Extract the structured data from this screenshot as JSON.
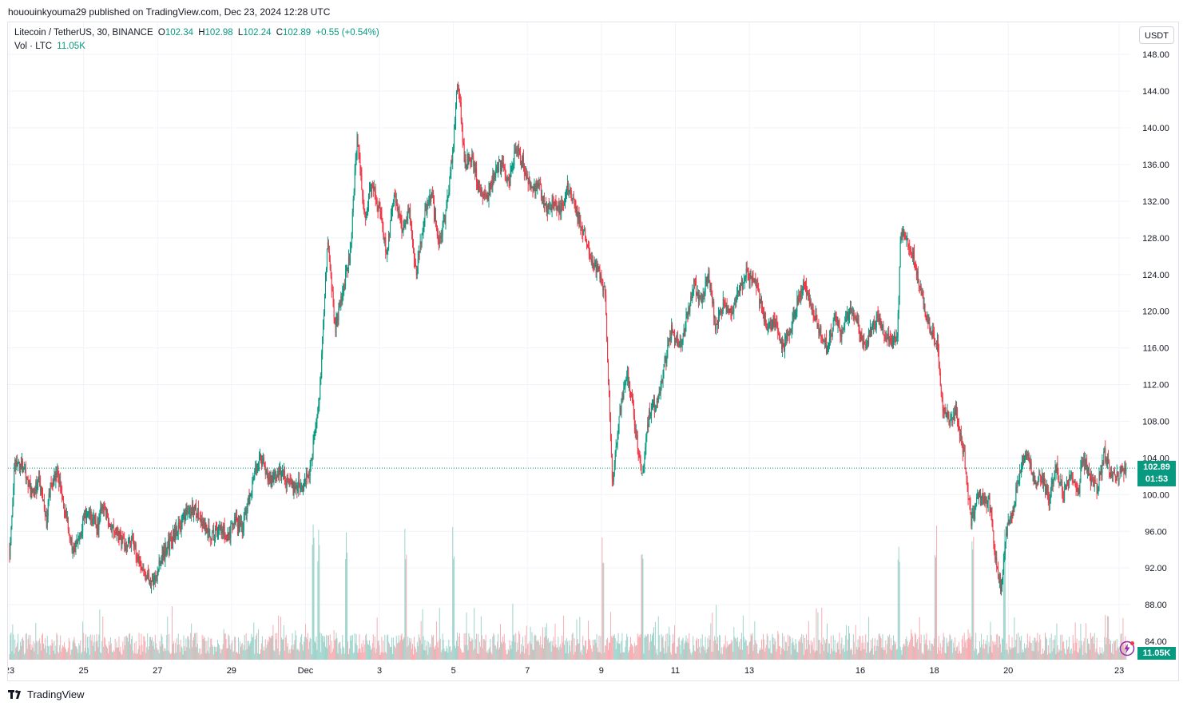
{
  "header": {
    "published_line": "hououinkyouma29 published on TradingView.com, Dec 23, 2024 12:28 UTC"
  },
  "legend": {
    "symbol": "Litecoin / TetherUS, 30, BINANCE",
    "o_label": "O",
    "o_value": "102.34",
    "h_label": "H",
    "h_value": "102.98",
    "l_label": "L",
    "l_value": "102.24",
    "c_label": "C",
    "c_value": "102.89",
    "change": "+0.55 (+0.54%)",
    "vol_label": "Vol · LTC",
    "vol_value": "11.05K"
  },
  "currency_button": "USDT",
  "last_price_tag": {
    "price": "102.89",
    "countdown": "01:53"
  },
  "volume_tag": "11.05K",
  "branding": {
    "name": "TradingView"
  },
  "colors": {
    "up": "#089981",
    "down": "#f23645",
    "volume_up": "#9fd4cc",
    "volume_down": "#f7aeb3",
    "grid": "#f0f3fa",
    "axis_text": "#131722"
  },
  "chart_data": {
    "type": "candlestick",
    "title": "Litecoin / TetherUS, 30, BINANCE",
    "interval": "30",
    "ylabel": "USDT",
    "ylim": [
      82.0,
      151.5
    ],
    "y_ticks": [
      84,
      88,
      92,
      96,
      100,
      104,
      108,
      112,
      116,
      120,
      124,
      128,
      132,
      136,
      140,
      144,
      148
    ],
    "y_tick_labels": [
      "84.00",
      "88.00",
      "92.00",
      "96.00",
      "100.00",
      "104.00",
      "108.00",
      "112.00",
      "116.00",
      "120.00",
      "124.00",
      "128.00",
      "132.00",
      "136.00",
      "140.00",
      "144.00",
      "148.00"
    ],
    "x_range_days": [
      0,
      30.3
    ],
    "x_ticks": [
      {
        "day": 0.0,
        "label": "23"
      },
      {
        "day": 2.0,
        "label": "25"
      },
      {
        "day": 4.0,
        "label": "27"
      },
      {
        "day": 6.0,
        "label": "29"
      },
      {
        "day": 8.0,
        "label": "Dec"
      },
      {
        "day": 10.0,
        "label": "3"
      },
      {
        "day": 12.0,
        "label": "5"
      },
      {
        "day": 14.0,
        "label": "7"
      },
      {
        "day": 16.0,
        "label": "9"
      },
      {
        "day": 18.0,
        "label": "11"
      },
      {
        "day": 20.0,
        "label": "13"
      },
      {
        "day": 23.0,
        "label": "16"
      },
      {
        "day": 25.0,
        "label": "18"
      },
      {
        "day": 27.0,
        "label": "20"
      },
      {
        "day": 30.0,
        "label": "23"
      }
    ],
    "price_path": [
      [
        0.0,
        94.0
      ],
      [
        0.15,
        103.5
      ],
      [
        0.4,
        103.0
      ],
      [
        0.6,
        100.0
      ],
      [
        0.8,
        101.5
      ],
      [
        1.0,
        97.0
      ],
      [
        1.1,
        101.0
      ],
      [
        1.3,
        102.5
      ],
      [
        1.45,
        99.0
      ],
      [
        1.6,
        96.0
      ],
      [
        1.75,
        93.5
      ],
      [
        1.9,
        96.0
      ],
      [
        2.1,
        98.0
      ],
      [
        2.4,
        96.5
      ],
      [
        2.5,
        99.0
      ],
      [
        2.7,
        97.0
      ],
      [
        2.9,
        96.0
      ],
      [
        3.1,
        94.5
      ],
      [
        3.3,
        95.0
      ],
      [
        3.5,
        93.0
      ],
      [
        3.7,
        91.0
      ],
      [
        3.9,
        90.5
      ],
      [
        4.1,
        93.0
      ],
      [
        4.3,
        94.5
      ],
      [
        4.5,
        96.0
      ],
      [
        4.8,
        98.0
      ],
      [
        5.0,
        98.5
      ],
      [
        5.2,
        97.0
      ],
      [
        5.5,
        95.5
      ],
      [
        5.7,
        96.5
      ],
      [
        5.9,
        95.5
      ],
      [
        6.1,
        97.0
      ],
      [
        6.3,
        96.5
      ],
      [
        6.6,
        102.0
      ],
      [
        6.8,
        104.0
      ],
      [
        7.0,
        101.5
      ],
      [
        7.3,
        102.5
      ],
      [
        7.6,
        101.0
      ],
      [
        7.9,
        101.0
      ],
      [
        8.1,
        102.5
      ],
      [
        8.25,
        106.5
      ],
      [
        8.4,
        112.0
      ],
      [
        8.6,
        128.0
      ],
      [
        8.8,
        118.0
      ],
      [
        9.0,
        122.0
      ],
      [
        9.2,
        126.0
      ],
      [
        9.4,
        139.0
      ],
      [
        9.6,
        130.0
      ],
      [
        9.8,
        134.0
      ],
      [
        10.0,
        131.0
      ],
      [
        10.2,
        126.0
      ],
      [
        10.4,
        133.0
      ],
      [
        10.6,
        129.0
      ],
      [
        10.8,
        131.0
      ],
      [
        11.0,
        124.0
      ],
      [
        11.2,
        130.0
      ],
      [
        11.4,
        133.0
      ],
      [
        11.6,
        127.0
      ],
      [
        11.8,
        131.0
      ],
      [
        12.0,
        138.0
      ],
      [
        12.1,
        145.0
      ],
      [
        12.2,
        142.0
      ],
      [
        12.3,
        136.0
      ],
      [
        12.5,
        137.0
      ],
      [
        12.7,
        133.0
      ],
      [
        12.9,
        132.0
      ],
      [
        13.1,
        135.0
      ],
      [
        13.3,
        136.0
      ],
      [
        13.5,
        134.0
      ],
      [
        13.7,
        138.0
      ],
      [
        13.9,
        136.0
      ],
      [
        14.1,
        133.0
      ],
      [
        14.3,
        134.0
      ],
      [
        14.5,
        131.0
      ],
      [
        14.7,
        132.0
      ],
      [
        14.9,
        131.0
      ],
      [
        15.1,
        133.5
      ],
      [
        15.3,
        131.0
      ],
      [
        15.5,
        129.0
      ],
      [
        15.7,
        126.0
      ],
      [
        15.9,
        124.5
      ],
      [
        16.1,
        122.0
      ],
      [
        16.3,
        101.0
      ],
      [
        16.5,
        109.0
      ],
      [
        16.7,
        113.5
      ],
      [
        16.9,
        108.0
      ],
      [
        17.1,
        102.0
      ],
      [
        17.3,
        109.0
      ],
      [
        17.5,
        110.0
      ],
      [
        17.7,
        114.0
      ],
      [
        17.9,
        118.0
      ],
      [
        18.1,
        116.0
      ],
      [
        18.3,
        119.0
      ],
      [
        18.5,
        123.0
      ],
      [
        18.7,
        121.0
      ],
      [
        18.9,
        124.0
      ],
      [
        19.1,
        118.0
      ],
      [
        19.3,
        121.0
      ],
      [
        19.5,
        120.0
      ],
      [
        19.7,
        122.0
      ],
      [
        19.9,
        124.0
      ],
      [
        20.1,
        123.5
      ],
      [
        20.3,
        121.0
      ],
      [
        20.5,
        118.0
      ],
      [
        20.7,
        119.0
      ],
      [
        20.9,
        116.0
      ],
      [
        21.1,
        118.0
      ],
      [
        21.3,
        121.0
      ],
      [
        21.5,
        123.0
      ],
      [
        21.7,
        120.0
      ],
      [
        21.9,
        118.0
      ],
      [
        22.1,
        116.0
      ],
      [
        22.3,
        119.0
      ],
      [
        22.5,
        117.5
      ],
      [
        22.7,
        120.0
      ],
      [
        22.9,
        119.0
      ],
      [
        23.1,
        116.0
      ],
      [
        23.3,
        118.0
      ],
      [
        23.5,
        119.5
      ],
      [
        23.7,
        117.0
      ],
      [
        24.0,
        117.0
      ],
      [
        24.1,
        129.0
      ],
      [
        24.3,
        127.5
      ],
      [
        24.5,
        125.0
      ],
      [
        24.7,
        121.0
      ],
      [
        24.9,
        118.0
      ],
      [
        25.1,
        116.0
      ],
      [
        25.2,
        110.0
      ],
      [
        25.4,
        108.0
      ],
      [
        25.6,
        109.0
      ],
      [
        25.8,
        104.5
      ],
      [
        26.0,
        97.0
      ],
      [
        26.2,
        100.0
      ],
      [
        26.5,
        99.0
      ],
      [
        26.7,
        91.5
      ],
      [
        26.8,
        89.5
      ],
      [
        26.95,
        96.0
      ],
      [
        27.1,
        98.0
      ],
      [
        27.3,
        102.0
      ],
      [
        27.5,
        104.5
      ],
      [
        27.7,
        101.5
      ],
      [
        27.9,
        102.0
      ],
      [
        28.1,
        99.5
      ],
      [
        28.3,
        103.0
      ],
      [
        28.5,
        100.0
      ],
      [
        28.7,
        102.5
      ],
      [
        28.9,
        100.0
      ],
      [
        29.0,
        104.0
      ],
      [
        29.2,
        102.0
      ],
      [
        29.4,
        100.5
      ],
      [
        29.6,
        104.5
      ],
      [
        29.8,
        102.0
      ],
      [
        30.0,
        102.3
      ],
      [
        30.2,
        102.89
      ]
    ],
    "volume_spikes_days": [
      8.2,
      8.35,
      9.1,
      10.7,
      12.0,
      16.05,
      17.1,
      24.05,
      25.05,
      26.05,
      26.9
    ],
    "last_price": 102.89,
    "last_volume": "11.05K"
  }
}
